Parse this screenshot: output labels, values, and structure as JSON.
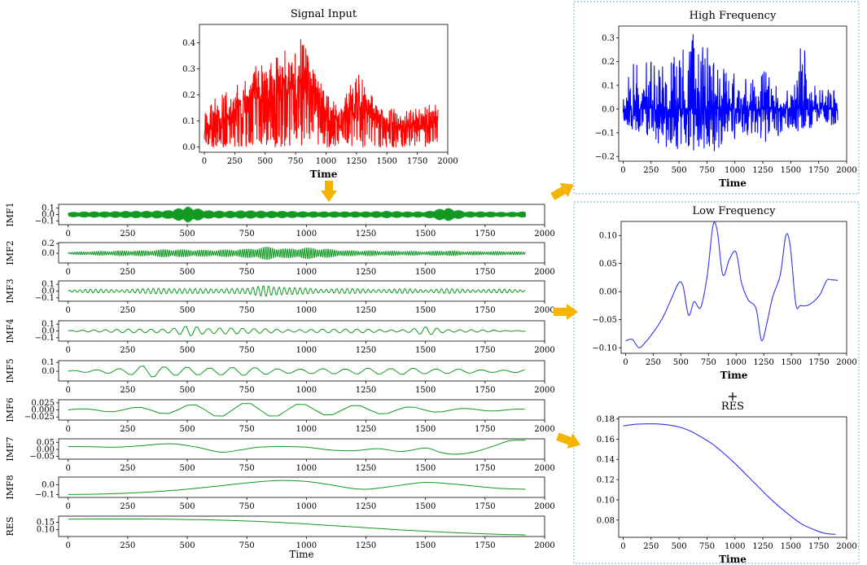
{
  "colors": {
    "input": "#ff0000",
    "high_frequency": "#0000ff",
    "low_frequency": "#3333ee",
    "imf": "#119922",
    "arrow": "#f5b400",
    "box_border": "#6cb4d8"
  },
  "plus_sign": "+",
  "chart_data": [
    {
      "id": "signal_input",
      "type": "line",
      "title": "Signal Input",
      "xlabel": "Time",
      "ylabel": "",
      "xlim": [
        -40,
        2000
      ],
      "ylim": [
        -0.02,
        0.47
      ],
      "xticks": [
        0,
        250,
        500,
        750,
        1000,
        1250,
        1500,
        1750,
        2000
      ],
      "yticks": [
        0.0,
        0.1,
        0.2,
        0.3,
        0.4
      ],
      "ytick_labels": [
        "0.0",
        "0.1",
        "0.2",
        "0.3",
        "0.4"
      ],
      "series": [
        {
          "color": "#ff0000",
          "x": [
            0,
            80,
            160,
            240,
            320,
            400,
            480,
            560,
            640,
            720,
            800,
            880,
            960,
            1040,
            1120,
            1200,
            1280,
            1360,
            1440,
            1520,
            1600,
            1680,
            1760,
            1840,
            1920
          ],
          "y": [
            0.08,
            0.1,
            0.13,
            0.15,
            0.2,
            0.24,
            0.28,
            0.24,
            0.3,
            0.34,
            0.4,
            0.28,
            0.18,
            0.15,
            0.12,
            0.16,
            0.18,
            0.14,
            0.13,
            0.1,
            0.09,
            0.11,
            0.09,
            0.1,
            0.11
          ],
          "max": [
            0.17,
            0.2,
            0.21,
            0.23,
            0.28,
            0.35,
            0.37,
            0.33,
            0.41,
            0.4,
            0.46,
            0.36,
            0.26,
            0.23,
            0.17,
            0.28,
            0.32,
            0.23,
            0.21,
            0.17,
            0.14,
            0.17,
            0.15,
            0.18,
            0.17
          ]
        }
      ]
    },
    {
      "id": "high_frequency",
      "type": "line",
      "title": "High Frequency",
      "xlabel": "Time",
      "ylabel": "",
      "xlim": [
        -40,
        2000
      ],
      "ylim": [
        -0.22,
        0.35
      ],
      "xticks": [
        0,
        250,
        500,
        750,
        1000,
        1250,
        1500,
        1750,
        2000
      ],
      "yticks": [
        -0.2,
        -0.1,
        0.0,
        0.1,
        0.2,
        0.3
      ],
      "ytick_labels": [
        "−0.2",
        "−0.1",
        "0.0",
        "0.1",
        "0.2",
        "0.3"
      ],
      "series": [
        {
          "color": "#0000ff",
          "x": [
            0,
            80,
            160,
            240,
            320,
            400,
            480,
            560,
            640,
            720,
            800,
            880,
            960,
            1040,
            1120,
            1200,
            1280,
            1360,
            1440,
            1520,
            1600,
            1680,
            1760,
            1840,
            1920
          ],
          "y": [
            0.0,
            0.0,
            0.0,
            0.0,
            0.0,
            0.0,
            0.0,
            0.0,
            0.0,
            0.0,
            0.0,
            0.0,
            0.0,
            0.0,
            0.0,
            0.0,
            0.0,
            0.0,
            0.0,
            0.0,
            0.0,
            0.0,
            0.0,
            0.0,
            0.0
          ],
          "max": [
            0.07,
            0.22,
            0.2,
            0.22,
            0.21,
            0.22,
            0.28,
            0.3,
            0.34,
            0.29,
            0.24,
            0.2,
            0.18,
            0.14,
            0.12,
            0.13,
            0.2,
            0.12,
            0.12,
            0.1,
            0.31,
            0.12,
            0.1,
            0.08,
            0.09
          ],
          "min": [
            -0.05,
            -0.09,
            -0.1,
            -0.12,
            -0.16,
            -0.16,
            -0.18,
            -0.16,
            -0.18,
            -0.17,
            -0.18,
            -0.16,
            -0.14,
            -0.12,
            -0.11,
            -0.12,
            -0.14,
            -0.12,
            -0.1,
            -0.09,
            -0.1,
            -0.08,
            -0.07,
            -0.07,
            -0.06
          ]
        }
      ]
    },
    {
      "id": "low_frequency",
      "type": "line",
      "title": "Low Frequency",
      "xlabel": "Time",
      "ylabel": "",
      "xlim": [
        -40,
        2000
      ],
      "ylim": [
        -0.11,
        0.125
      ],
      "xticks": [
        0,
        250,
        500,
        750,
        1000,
        1250,
        1500,
        1750,
        2000
      ],
      "yticks": [
        -0.1,
        -0.05,
        0.0,
        0.05,
        0.1
      ],
      "ytick_labels": [
        "−0.10",
        "−0.05",
        "0.00",
        "0.05",
        "0.10"
      ],
      "series": [
        {
          "color": "#3333ee",
          "x": [
            0,
            60,
            120,
            180,
            260,
            340,
            420,
            480,
            520,
            570,
            620,
            680,
            740,
            790,
            830,
            880,
            940,
            1000,
            1050,
            1110,
            1180,
            1230,
            1280,
            1330,
            1400,
            1450,
            1490,
            1540,
            1580,
            1640,
            1700,
            1760,
            1820,
            1860,
            1920
          ],
          "y": [
            -0.088,
            -0.085,
            -0.1,
            -0.09,
            -0.07,
            -0.045,
            -0.01,
            0.015,
            0.01,
            -0.042,
            -0.018,
            -0.028,
            0.03,
            0.117,
            0.108,
            0.03,
            0.058,
            0.07,
            0.015,
            -0.015,
            -0.03,
            -0.087,
            -0.055,
            -0.01,
            0.03,
            0.1,
            0.08,
            -0.022,
            -0.025,
            -0.025,
            -0.018,
            -0.005,
            0.02,
            0.021,
            0.02
          ]
        }
      ]
    },
    {
      "id": "res_right",
      "type": "line",
      "title": "RES",
      "xlabel": "Time",
      "ylabel": "",
      "xlim": [
        -40,
        2000
      ],
      "ylim": [
        0.063,
        0.182
      ],
      "xticks": [
        0,
        250,
        500,
        750,
        1000,
        1250,
        1500,
        1750,
        2000
      ],
      "yticks": [
        0.08,
        0.1,
        0.12,
        0.14,
        0.16,
        0.18
      ],
      "ytick_labels": [
        "0.08",
        "0.10",
        "0.12",
        "0.14",
        "0.16",
        "0.18"
      ],
      "series": [
        {
          "color": "#3333ee",
          "x": [
            0,
            100,
            200,
            300,
            400,
            500,
            600,
            700,
            800,
            900,
            1000,
            1100,
            1200,
            1300,
            1400,
            1500,
            1600,
            1700,
            1800,
            1900
          ],
          "y": [
            0.173,
            0.1745,
            0.175,
            0.175,
            0.174,
            0.172,
            0.168,
            0.162,
            0.155,
            0.146,
            0.136,
            0.125,
            0.114,
            0.103,
            0.093,
            0.084,
            0.076,
            0.071,
            0.067,
            0.066
          ]
        }
      ]
    },
    {
      "id": "imf1",
      "type": "line",
      "title": "",
      "ylabel": "IMF1",
      "xlabel": "",
      "xlim": [
        -40,
        2000
      ],
      "ylim": [
        -0.16,
        0.16
      ],
      "xticks": [
        0,
        250,
        500,
        750,
        1000,
        1250,
        1500,
        1750,
        2000
      ],
      "yticks": [
        -0.1,
        0.0,
        0.1
      ],
      "ytick_labels": [
        "−0.1",
        "0.0",
        "0.1"
      ],
      "osc": {
        "period": 4.5,
        "amps": [
          0.04,
          0.05,
          0.05,
          0.06,
          0.06,
          0.07,
          0.14,
          0.07,
          0.06,
          0.07,
          0.06,
          0.06,
          0.05,
          0.05,
          0.05,
          0.05,
          0.06,
          0.05,
          0.05,
          0.12,
          0.05,
          0.05,
          0.04,
          0.05
        ]
      }
    },
    {
      "id": "imf2",
      "type": "line",
      "title": "",
      "ylabel": "IMF2",
      "xlabel": "",
      "xlim": [
        -40,
        2000
      ],
      "ylim": [
        -0.2,
        0.22
      ],
      "xticks": [
        0,
        250,
        500,
        750,
        1000,
        1250,
        1500,
        1750,
        2000
      ],
      "yticks": [
        0.0,
        0.2
      ],
      "ytick_labels": [
        "0.0",
        "0.2"
      ],
      "osc": {
        "period": 9,
        "amps": [
          0.02,
          0.04,
          0.05,
          0.06,
          0.06,
          0.09,
          0.08,
          0.07,
          0.08,
          0.1,
          0.15,
          0.1,
          0.13,
          0.1,
          0.06,
          0.06,
          0.05,
          0.05,
          0.04,
          0.06,
          0.04,
          0.04,
          0.04,
          0.03
        ]
      }
    },
    {
      "id": "imf3",
      "type": "line",
      "title": "",
      "ylabel": "IMF3",
      "xlabel": "",
      "xlim": [
        -40,
        2000
      ],
      "ylim": [
        -0.15,
        0.15
      ],
      "xticks": [
        0,
        250,
        500,
        750,
        1000,
        1250,
        1500,
        1750,
        2000
      ],
      "yticks": [
        -0.1,
        0.0,
        0.1
      ],
      "ytick_labels": [
        "−0.1",
        "0.0",
        "0.1"
      ],
      "osc": {
        "period": 22,
        "amps": [
          0.02,
          0.03,
          0.03,
          0.03,
          0.04,
          0.06,
          0.04,
          0.04,
          0.05,
          0.04,
          0.12,
          0.06,
          0.05,
          0.04,
          0.04,
          0.04,
          0.03,
          0.04,
          0.03,
          0.04,
          0.03,
          0.03,
          0.03,
          0.02
        ]
      }
    },
    {
      "id": "imf4",
      "type": "line",
      "title": "",
      "ylabel": "IMF4",
      "xlabel": "",
      "xlim": [
        -40,
        2000
      ],
      "ylim": [
        -0.15,
        0.15
      ],
      "xticks": [
        0,
        250,
        500,
        750,
        1000,
        1250,
        1500,
        1750,
        2000
      ],
      "yticks": [
        -0.1,
        0.0,
        0.1
      ],
      "ytick_labels": [
        "−0.1",
        "0.0",
        "0.1"
      ],
      "osc": {
        "period": 48,
        "amps": [
          0.01,
          0.02,
          0.02,
          0.03,
          0.03,
          0.04,
          0.12,
          0.04,
          0.05,
          0.04,
          0.04,
          0.03,
          0.03,
          0.03,
          0.03,
          0.03,
          0.02,
          0.03,
          0.08,
          0.02,
          0.02,
          0.02,
          0.01,
          0.01
        ]
      }
    },
    {
      "id": "imf5",
      "type": "line",
      "title": "",
      "ylabel": "IMF5",
      "xlabel": "",
      "xlim": [
        -40,
        2000
      ],
      "ylim": [
        -0.11,
        0.12
      ],
      "xticks": [
        0,
        250,
        500,
        750,
        1000,
        1250,
        1500,
        1750,
        2000
      ],
      "yticks": [
        0.0,
        0.1
      ],
      "ytick_labels": [
        "0.0",
        "0.1"
      ],
      "osc": {
        "period": 95,
        "amps": [
          0.01,
          0.02,
          0.03,
          0.04,
          0.08,
          0.05,
          0.05,
          0.04,
          0.05,
          0.06,
          0.05,
          0.04,
          0.04,
          0.04,
          0.03,
          0.04,
          0.03,
          0.04,
          0.03,
          0.03,
          0.03,
          0.02,
          0.02,
          0.03
        ]
      }
    },
    {
      "id": "imf6",
      "type": "line",
      "title": "",
      "ylabel": "IMF6",
      "xlabel": "",
      "xlim": [
        -40,
        2000
      ],
      "ylim": [
        -0.036,
        0.036
      ],
      "xticks": [
        0,
        250,
        500,
        750,
        1000,
        1250,
        1500,
        1750,
        2000
      ],
      "yticks": [
        -0.025,
        0.0,
        0.025
      ],
      "ytick_labels": [
        "−0.025",
        "0.000",
        "0.025"
      ],
      "osc": {
        "period": 230,
        "amps": [
          0.005,
          0.007,
          0.01,
          0.012,
          0.014,
          0.018,
          0.022,
          0.026,
          0.028,
          0.027,
          0.026,
          0.024,
          0.022,
          0.02,
          0.018,
          0.017,
          0.015,
          0.012,
          0.01,
          0.008,
          0.006,
          0.005,
          0.004,
          0.004
        ]
      }
    },
    {
      "id": "imf7",
      "type": "line",
      "title": "",
      "ylabel": "IMF7",
      "xlabel": "",
      "xlim": [
        -40,
        2000
      ],
      "ylim": [
        -0.07,
        0.075
      ],
      "xticks": [
        0,
        250,
        500,
        750,
        1000,
        1250,
        1500,
        1750,
        2000
      ],
      "yticks": [
        -0.05,
        0.0,
        0.05
      ],
      "ytick_labels": [
        "−0.05",
        "0.00",
        "0.05"
      ],
      "series": [
        {
          "x": [
            0,
            100,
            200,
            300,
            430,
            540,
            640,
            720,
            800,
            900,
            1000,
            1100,
            1200,
            1300,
            1400,
            1500,
            1560,
            1620,
            1700,
            1780,
            1850,
            1920
          ],
          "y": [
            0.02,
            0.018,
            0.015,
            0.025,
            0.04,
            0.015,
            -0.02,
            -0.005,
            0.015,
            0.02,
            0.015,
            -0.005,
            -0.01,
            0.005,
            -0.015,
            0.01,
            -0.02,
            -0.035,
            -0.02,
            0.02,
            0.06,
            0.065
          ]
        }
      ]
    },
    {
      "id": "imf8",
      "type": "line",
      "title": "",
      "ylabel": "IMF8",
      "xlabel": "",
      "xlim": [
        -40,
        2000
      ],
      "ylim": [
        -0.13,
        0.08
      ],
      "xticks": [
        0,
        250,
        500,
        750,
        1000,
        1250,
        1500,
        1750,
        2000
      ],
      "yticks": [
        0.0,
        -0.1
      ],
      "ytick_labels": [
        "0.0",
        "−0.1"
      ],
      "series": [
        {
          "x": [
            0,
            150,
            300,
            450,
            600,
            750,
            880,
            1000,
            1100,
            1200,
            1260,
            1350,
            1500,
            1650,
            1800,
            1920
          ],
          "y": [
            -0.1,
            -0.095,
            -0.08,
            -0.055,
            -0.02,
            0.02,
            0.045,
            0.035,
            0.0,
            -0.04,
            -0.045,
            -0.02,
            0.025,
            0.0,
            -0.035,
            -0.045
          ]
        }
      ]
    },
    {
      "id": "res_left",
      "type": "line",
      "title": "",
      "ylabel": "RES",
      "xlabel": "Time",
      "xlim": [
        -40,
        2000
      ],
      "ylim": [
        0.055,
        0.19
      ],
      "xticks": [
        0,
        250,
        500,
        750,
        1000,
        1250,
        1500,
        1750,
        2000
      ],
      "yticks": [
        0.1,
        0.15
      ],
      "ytick_labels": [
        "0.10",
        "0.15"
      ],
      "series": [
        {
          "x": [
            0,
            200,
            400,
            600,
            800,
            1000,
            1200,
            1400,
            1600,
            1800,
            1920
          ],
          "y": [
            0.17,
            0.171,
            0.17,
            0.165,
            0.155,
            0.138,
            0.118,
            0.098,
            0.082,
            0.07,
            0.066
          ]
        }
      ]
    }
  ]
}
